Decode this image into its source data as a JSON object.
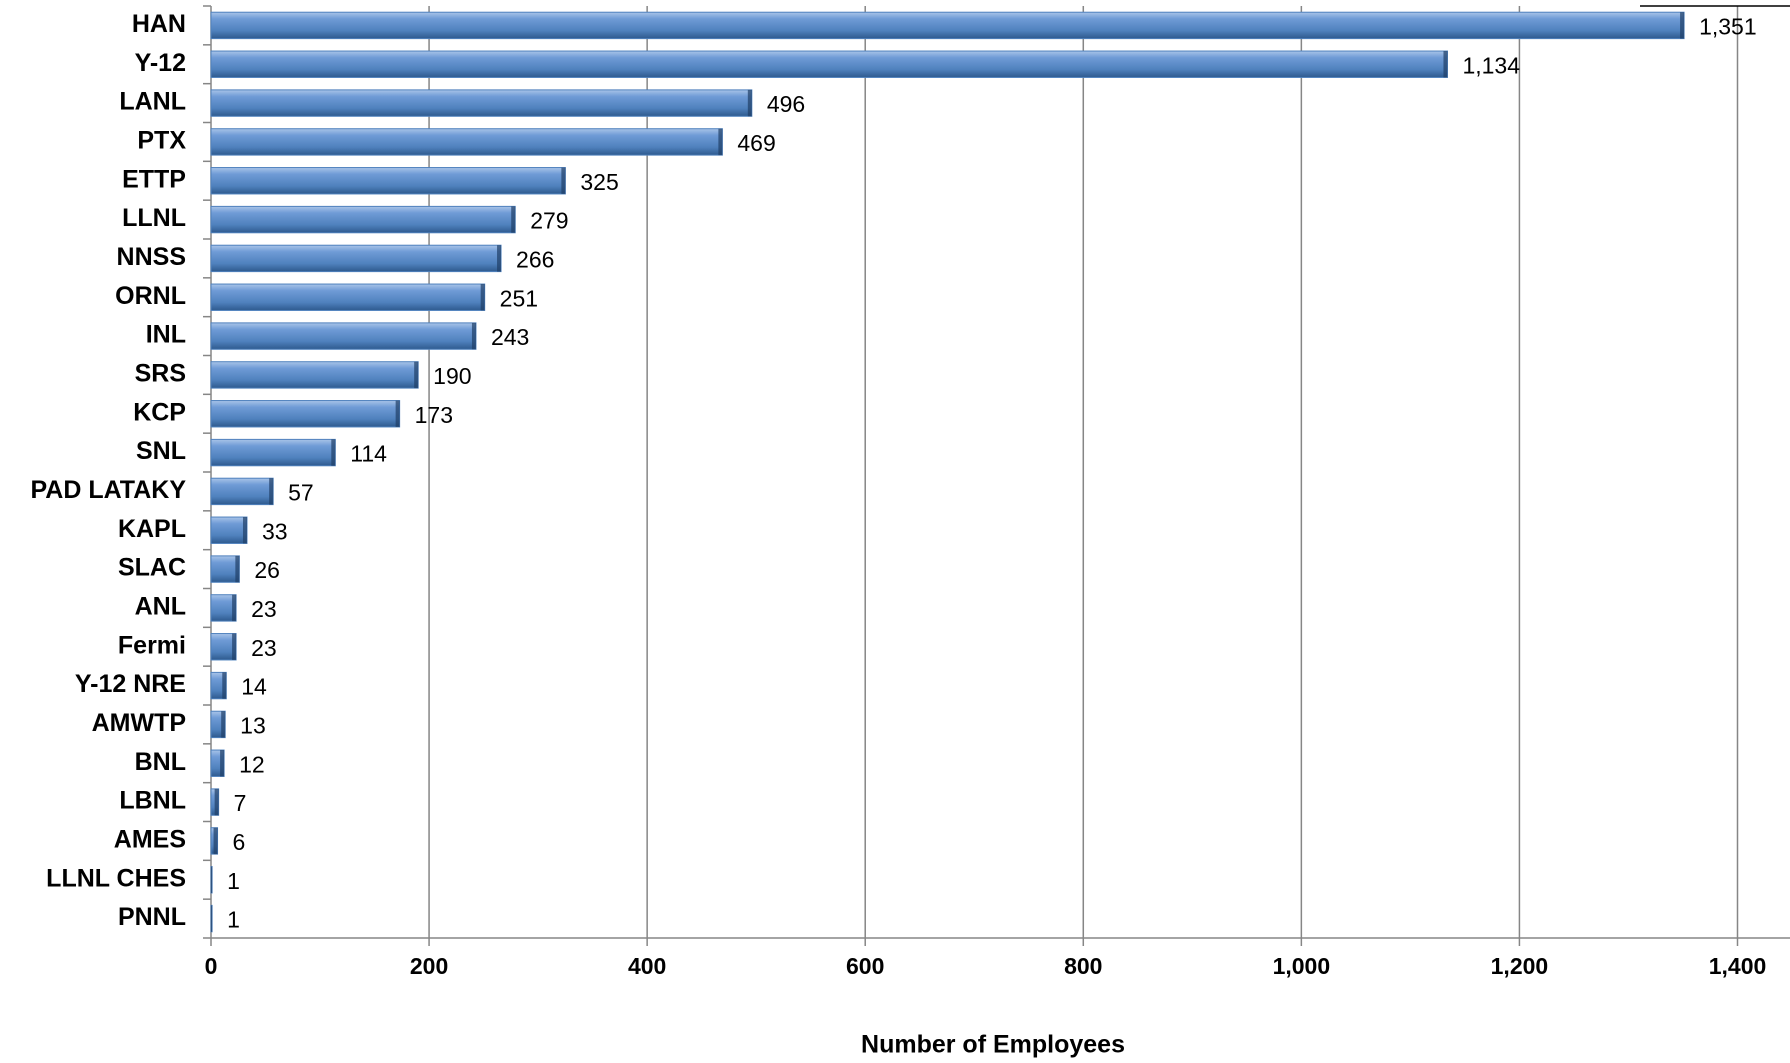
{
  "chart_data": {
    "type": "hbar",
    "x_label": "Number of Employees",
    "categories": [
      "HAN",
      "Y-12",
      "LANL",
      "PTX",
      "ETTP",
      "LLNL",
      "NNSS",
      "ORNL",
      "INL",
      "SRS",
      "KCP",
      "SNL",
      "PAD LATAKY",
      "KAPL",
      "SLAC",
      "ANL",
      "Fermi",
      "Y-12 NRE",
      "AMWTP",
      "BNL",
      "LBNL",
      "AMES",
      "LLNL CHES",
      "PNNL"
    ],
    "values": [
      1351,
      1134,
      496,
      469,
      325,
      279,
      266,
      251,
      243,
      190,
      173,
      114,
      57,
      33,
      26,
      23,
      23,
      14,
      13,
      12,
      7,
      6,
      1,
      1
    ],
    "value_labels": [
      "1,351",
      "1,134",
      "496",
      "469",
      "325",
      "279",
      "266",
      "251",
      "243",
      "190",
      "173",
      "114",
      "57",
      "33",
      "26",
      "23",
      "23",
      "14",
      "13",
      "12",
      "7",
      "6",
      "1",
      "1"
    ],
    "color": "#4f81bd",
    "xlim": [
      0,
      1400
    ],
    "xticks": [
      0,
      200,
      400,
      600,
      800,
      {
        "value": 1000,
        "label": "1,000"
      },
      {
        "value": 1200,
        "label": "1,200"
      },
      {
        "value": 1400,
        "label": "1,400"
      }
    ],
    "grid": true
  }
}
